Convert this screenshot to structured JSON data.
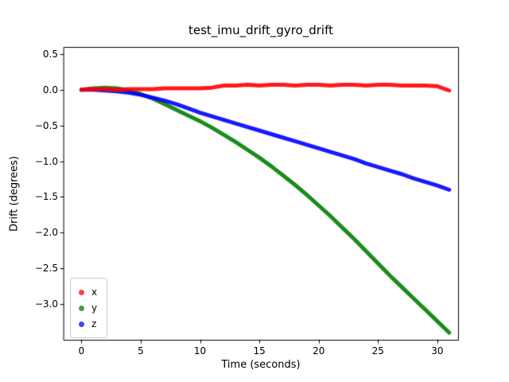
{
  "chart_data": {
    "type": "scatter",
    "title": "test_imu_drift_gyro_drift",
    "xlabel": "Time (seconds)",
    "ylabel": "Drift (degrees)",
    "xlim": [
      -1.5,
      31.75
    ],
    "ylim": [
      -3.5,
      0.6
    ],
    "xticks": [
      0,
      5,
      10,
      15,
      20,
      25,
      30
    ],
    "yticks": [
      0.5,
      0.0,
      -0.5,
      -1.0,
      -1.5,
      -2.0,
      -2.5,
      -3.0
    ],
    "grid": false,
    "legend_position": "lower left",
    "marker": "dot",
    "x": [
      0,
      1,
      2,
      3,
      4,
      5,
      6,
      7,
      8,
      9,
      10,
      11,
      12,
      13,
      14,
      15,
      16,
      17,
      18,
      19,
      20,
      21,
      22,
      23,
      24,
      25,
      26,
      27,
      28,
      29,
      30,
      31
    ],
    "series": [
      {
        "name": "x",
        "color": "#ff0000",
        "values": [
          0.0,
          0.01,
          0.01,
          0.0,
          0.01,
          0.01,
          0.01,
          0.02,
          0.02,
          0.02,
          0.02,
          0.03,
          0.06,
          0.06,
          0.07,
          0.06,
          0.07,
          0.07,
          0.06,
          0.07,
          0.07,
          0.06,
          0.07,
          0.07,
          0.06,
          0.07,
          0.07,
          0.06,
          0.06,
          0.06,
          0.05,
          -0.01
        ]
      },
      {
        "name": "y",
        "color": "#008000",
        "values": [
          0.0,
          0.02,
          0.03,
          0.02,
          -0.01,
          -0.06,
          -0.12,
          -0.2,
          -0.28,
          -0.36,
          -0.44,
          -0.53,
          -0.63,
          -0.73,
          -0.84,
          -0.95,
          -1.07,
          -1.2,
          -1.33,
          -1.47,
          -1.62,
          -1.77,
          -1.93,
          -2.09,
          -2.26,
          -2.43,
          -2.6,
          -2.76,
          -2.92,
          -3.08,
          -3.24,
          -3.4
        ]
      },
      {
        "name": "z",
        "color": "#0000ff",
        "values": [
          0.0,
          0.0,
          -0.01,
          -0.02,
          -0.04,
          -0.07,
          -0.11,
          -0.15,
          -0.2,
          -0.26,
          -0.32,
          -0.37,
          -0.42,
          -0.47,
          -0.52,
          -0.57,
          -0.62,
          -0.67,
          -0.72,
          -0.77,
          -0.82,
          -0.87,
          -0.92,
          -0.97,
          -1.03,
          -1.08,
          -1.13,
          -1.18,
          -1.24,
          -1.29,
          -1.34,
          -1.4
        ]
      }
    ]
  }
}
